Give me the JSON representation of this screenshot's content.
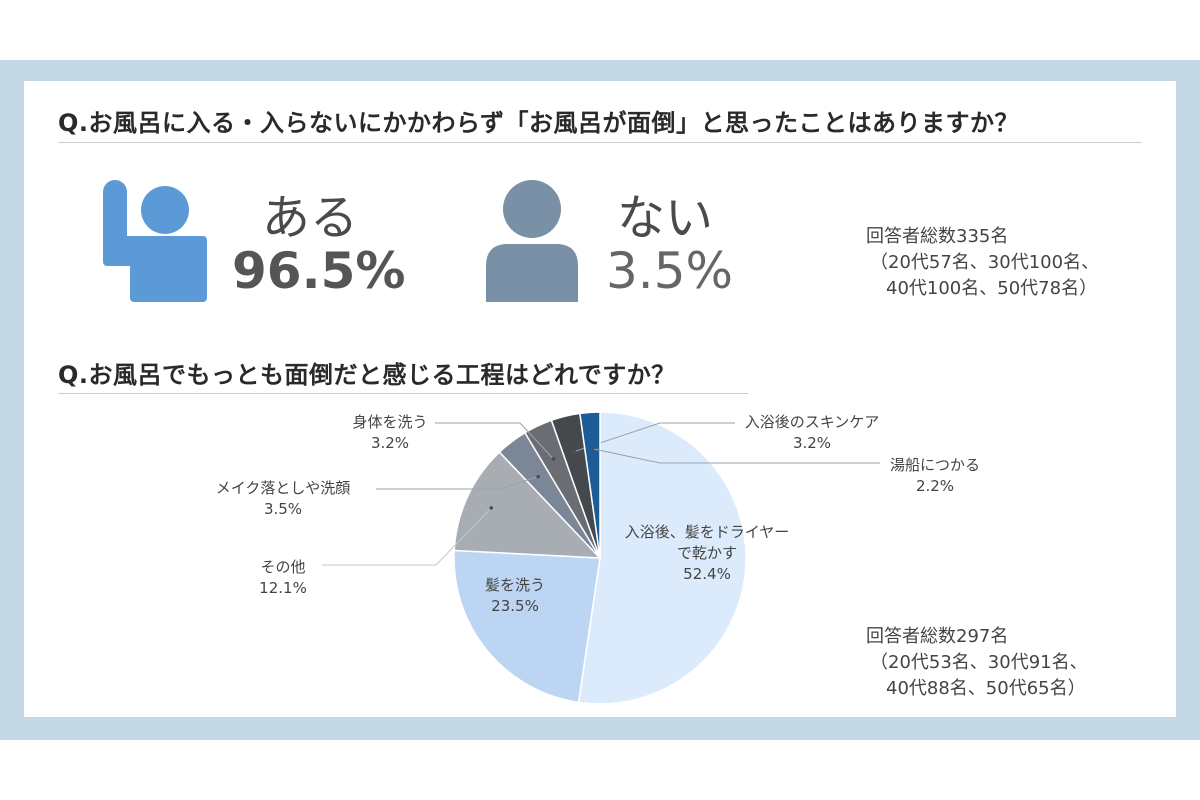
{
  "colors": {
    "frame": "#c3d7e5",
    "icon_yes": "#5b9ad6",
    "icon_no": "#7a90a7"
  },
  "q1": {
    "title": "Q.お風呂に入る・入らないにかかわらず「お風呂が面倒」と思ったことはありますか？",
    "yes_label": "ある",
    "yes_value": "96.5%",
    "no_label": "ない",
    "no_value": "3.5%",
    "yes_icon": "raised-hand-person-icon",
    "no_icon": "person-icon",
    "note_line1": "回答者総数335名",
    "note_line2": "（20代57名、30代100名、",
    "note_line3": "40代100名、50代78名）"
  },
  "q2": {
    "title": "Q.お風呂でもっとも面倒だと感じる工程はどれですか？",
    "note_line1": "回答者総数297名",
    "note_line2": "（20代53名、30代91名、",
    "note_line3": "40代88名、50代65名）"
  },
  "chart_data": {
    "type": "pie",
    "title": "",
    "start": "top",
    "direction": "clockwise",
    "slices": [
      {
        "label_lines": [
          "入浴後、髪をドライヤー",
          "で乾かす"
        ],
        "value": 52.4,
        "value_label": "52.4%",
        "color": "#dcebfb"
      },
      {
        "label_lines": [
          "髪を洗う"
        ],
        "value": 23.5,
        "value_label": "23.5%",
        "color": "#bcd5f2"
      },
      {
        "label_lines": [
          "その他"
        ],
        "value": 12.1,
        "value_label": "12.1%",
        "color": "#a8adb4"
      },
      {
        "label_lines": [
          "メイク落としや洗顔"
        ],
        "value": 3.5,
        "value_label": "3.5%",
        "color": "#7b8797"
      },
      {
        "label_lines": [
          "身体を洗う"
        ],
        "value": 3.2,
        "value_label": "3.2%",
        "color": "#6a6e74"
      },
      {
        "label_lines": [
          "入浴後のスキンケア"
        ],
        "value": 3.2,
        "value_label": "3.2%",
        "color": "#45484d"
      },
      {
        "label_lines": [
          "湯船につかる"
        ],
        "value": 2.2,
        "value_label": "2.2%",
        "color": "#1d5c97"
      }
    ]
  }
}
